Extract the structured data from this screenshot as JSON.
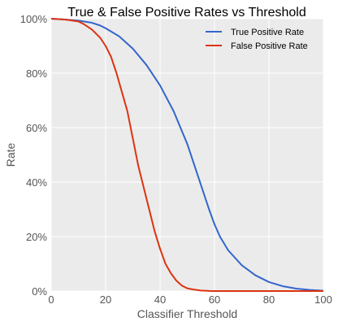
{
  "chart_data": {
    "type": "line",
    "title": "True & False Positive Rates vs Threshold",
    "xlabel": "Classifier Threshold",
    "ylabel": "Rate",
    "xlim": [
      0,
      100
    ],
    "ylim": [
      0,
      1
    ],
    "x_ticks": [
      0,
      20,
      40,
      60,
      80,
      100
    ],
    "x_tick_labels": [
      "0",
      "20",
      "40",
      "60",
      "80",
      "100"
    ],
    "y_ticks": [
      0,
      0.2,
      0.4,
      0.6,
      0.8,
      1.0
    ],
    "y_tick_labels": [
      "0%",
      "20%",
      "40%",
      "60%",
      "80%",
      "100%"
    ],
    "grid": true,
    "legend_position": "top-right",
    "series": [
      {
        "name": "True Positive Rate",
        "color": "#3366cc",
        "x": [
          0,
          5,
          10,
          15,
          18,
          20,
          25,
          30,
          35,
          40,
          45,
          50,
          55,
          58,
          60,
          62,
          65,
          70,
          75,
          80,
          85,
          90,
          95,
          100
        ],
        "y": [
          1.0,
          0.997,
          0.993,
          0.985,
          0.975,
          0.965,
          0.935,
          0.89,
          0.83,
          0.755,
          0.66,
          0.54,
          0.39,
          0.3,
          0.245,
          0.2,
          0.15,
          0.095,
          0.058,
          0.033,
          0.018,
          0.009,
          0.004,
          0.001
        ]
      },
      {
        "name": "False Positive Rate",
        "color": "#dd3311",
        "x": [
          0,
          5,
          10,
          12,
          15,
          18,
          20,
          22,
          24,
          26,
          28,
          30,
          32,
          34,
          36,
          38,
          40,
          42,
          44,
          46,
          48,
          50,
          52,
          55,
          58,
          60,
          100
        ],
        "y": [
          1.0,
          0.997,
          0.99,
          0.98,
          0.96,
          0.93,
          0.9,
          0.86,
          0.8,
          0.73,
          0.66,
          0.56,
          0.46,
          0.38,
          0.3,
          0.22,
          0.155,
          0.1,
          0.065,
          0.038,
          0.02,
          0.01,
          0.006,
          0.002,
          0.0005,
          0.0,
          0.0
        ]
      }
    ]
  }
}
